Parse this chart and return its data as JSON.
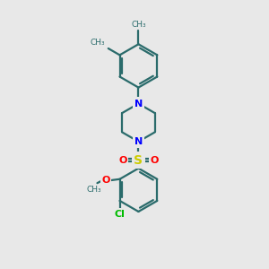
{
  "background_color": "#e8e8e8",
  "bond_color": "#2a6b6b",
  "N_color": "#0000ff",
  "S_color": "#cccc00",
  "O_color": "#ff0000",
  "Cl_color": "#00bb00",
  "methyl_color": "#2a6b6b",
  "fig_size": [
    3.0,
    3.0
  ],
  "dpi": 100,
  "xlim": [
    0,
    10
  ],
  "ylim": [
    0,
    10
  ]
}
